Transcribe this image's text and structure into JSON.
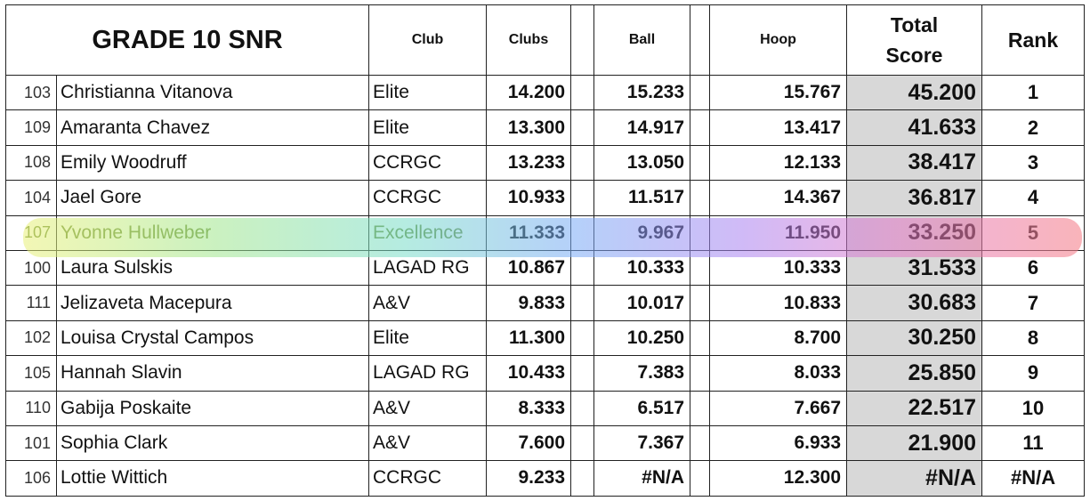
{
  "header": {
    "title": "GRADE 10 SNR",
    "club": "Club",
    "clubs": "Clubs",
    "ball": "Ball",
    "hoop": "Hoop",
    "total_line1": "Total",
    "total_line2": "Score",
    "rank": "Rank"
  },
  "highlight_colors": [
    "#e8f078",
    "#a0e68c",
    "#78dcc8",
    "#78aaf5",
    "#aa82f0",
    "#e178c8",
    "#f5828c"
  ],
  "rows": [
    {
      "num": "103",
      "name": "Christianna Vitanova",
      "club": "Elite",
      "clubs": "14.200",
      "ball": "15.233",
      "hoop": "15.767",
      "total": "45.200",
      "rank": "1"
    },
    {
      "num": "109",
      "name": "Amaranta Chavez",
      "club": "Elite",
      "clubs": "13.300",
      "ball": "14.917",
      "hoop": "13.417",
      "total": "41.633",
      "rank": "2"
    },
    {
      "num": "108",
      "name": "Emily Woodruff",
      "club": "CCRGC",
      "clubs": "13.233",
      "ball": "13.050",
      "hoop": "12.133",
      "total": "38.417",
      "rank": "3"
    },
    {
      "num": "104",
      "name": "Jael Gore",
      "club": "CCRGC",
      "clubs": "10.933",
      "ball": "11.517",
      "hoop": "14.367",
      "total": "36.817",
      "rank": "4"
    },
    {
      "num": "107",
      "name": "Yvonne Hullweber",
      "club": "Excellence",
      "clubs": "11.333",
      "ball": "9.967",
      "hoop": "11.950",
      "total": "33.250",
      "rank": "5"
    },
    {
      "num": "100",
      "name": "Laura Sulskis",
      "club": "LAGAD RG",
      "clubs": "10.867",
      "ball": "10.333",
      "hoop": "10.333",
      "total": "31.533",
      "rank": "6"
    },
    {
      "num": "111",
      "name": "Jelizaveta Macepura",
      "club": "A&V",
      "clubs": "9.833",
      "ball": "10.017",
      "hoop": "10.833",
      "total": "30.683",
      "rank": "7"
    },
    {
      "num": "102",
      "name": "Louisa Crystal Campos",
      "club": "Elite",
      "clubs": "11.300",
      "ball": "10.250",
      "hoop": "8.700",
      "total": "30.250",
      "rank": "8"
    },
    {
      "num": "105",
      "name": "Hannah Slavin",
      "club": "LAGAD RG",
      "clubs": "10.433",
      "ball": "7.383",
      "hoop": "8.033",
      "total": "25.850",
      "rank": "9"
    },
    {
      "num": "110",
      "name": "Gabija Poskaite",
      "club": "A&V",
      "clubs": "8.333",
      "ball": "6.517",
      "hoop": "7.667",
      "total": "22.517",
      "rank": "10"
    },
    {
      "num": "101",
      "name": "Sophia Clark",
      "club": "A&V",
      "clubs": "7.600",
      "ball": "7.367",
      "hoop": "6.933",
      "total": "21.900",
      "rank": "11"
    },
    {
      "num": "106",
      "name": "Lottie Wittich",
      "club": "CCRGC",
      "clubs": "9.233",
      "ball": "#N/A",
      "hoop": "12.300",
      "total": "#N/A",
      "rank": "#N/A"
    }
  ]
}
